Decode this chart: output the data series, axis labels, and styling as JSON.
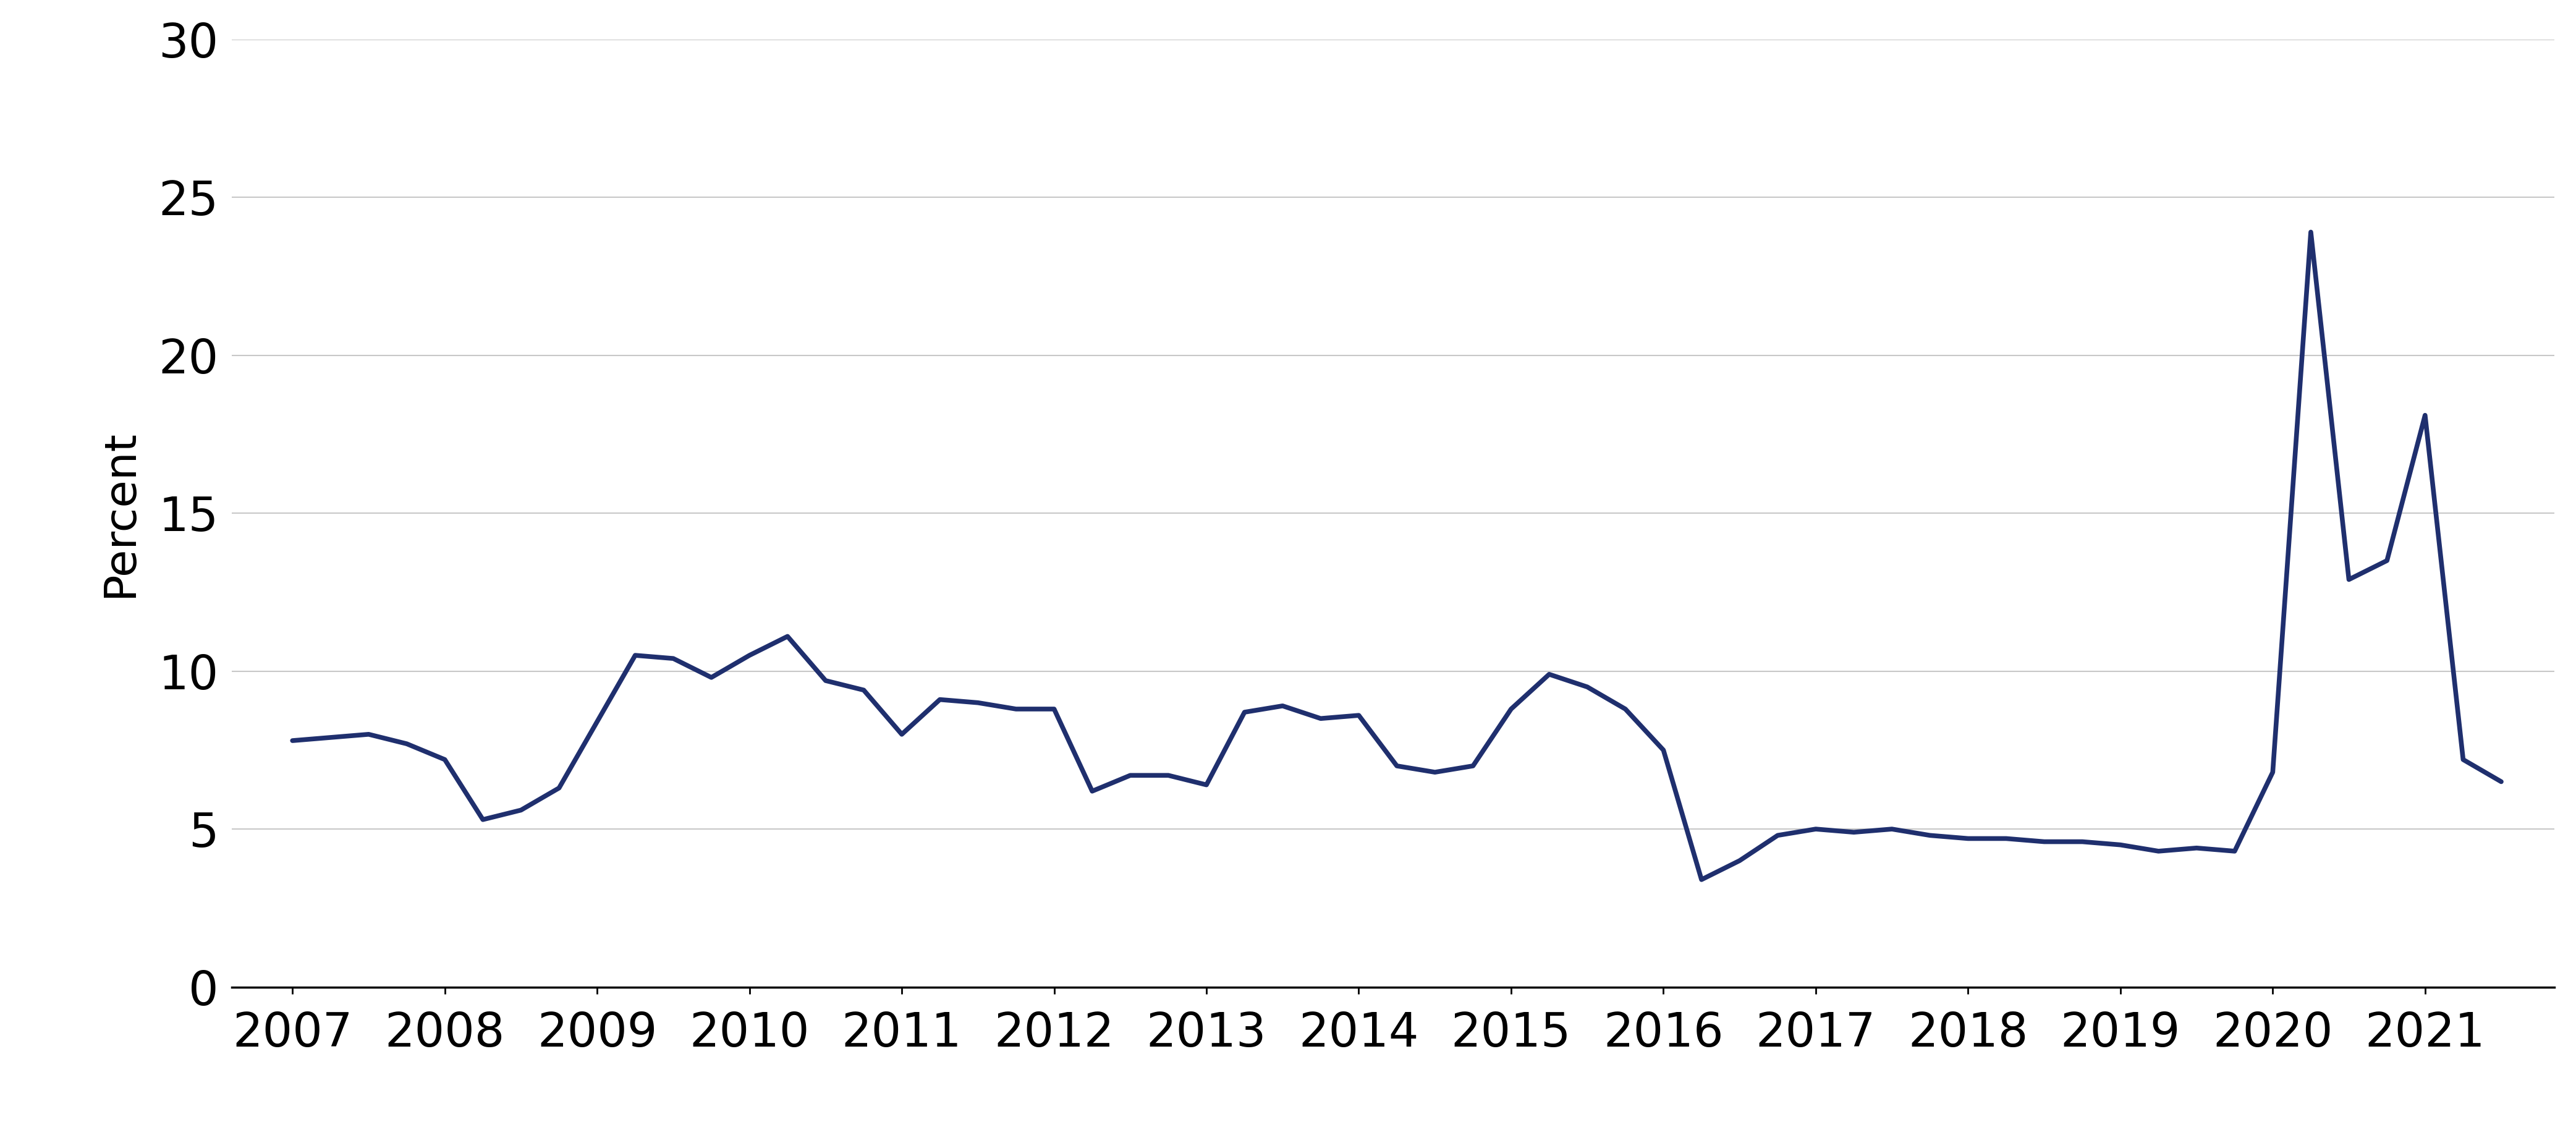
{
  "ylabel": "Percent",
  "line_color": "#1f2f6e",
  "line_width": 5.5,
  "background_color": "#ffffff",
  "grid_color": "#c8c8c8",
  "ylim": [
    0,
    30
  ],
  "yticks": [
    0,
    5,
    10,
    15,
    20,
    25,
    30
  ],
  "x_labels": [
    "2007",
    "2008",
    "2009",
    "2010",
    "2011",
    "2012",
    "2013",
    "2014",
    "2015",
    "2016",
    "2017",
    "2018",
    "2019",
    "2020",
    "2021"
  ],
  "x_values": [
    2007.0,
    2007.25,
    2007.5,
    2007.75,
    2008.0,
    2008.25,
    2008.5,
    2008.75,
    2009.0,
    2009.25,
    2009.5,
    2009.75,
    2010.0,
    2010.25,
    2010.5,
    2010.75,
    2011.0,
    2011.25,
    2011.5,
    2011.75,
    2012.0,
    2012.25,
    2012.5,
    2012.75,
    2013.0,
    2013.25,
    2013.5,
    2013.75,
    2014.0,
    2014.25,
    2014.5,
    2014.75,
    2015.0,
    2015.25,
    2015.5,
    2015.75,
    2016.0,
    2016.25,
    2016.5,
    2016.75,
    2017.0,
    2017.25,
    2017.5,
    2017.75,
    2018.0,
    2018.25,
    2018.5,
    2018.75,
    2019.0,
    2019.25,
    2019.5,
    2019.75,
    2020.0,
    2020.25,
    2020.5,
    2020.75,
    2021.0,
    2021.25,
    2021.5
  ],
  "y_values": [
    7.8,
    7.9,
    8.0,
    7.7,
    7.2,
    5.3,
    5.6,
    6.3,
    8.4,
    10.5,
    10.4,
    9.8,
    10.5,
    11.1,
    9.7,
    9.4,
    8.0,
    9.1,
    9.0,
    8.8,
    8.8,
    6.2,
    6.7,
    6.7,
    6.4,
    8.7,
    8.9,
    8.5,
    8.6,
    7.0,
    6.8,
    7.0,
    8.8,
    9.9,
    9.5,
    8.8,
    7.5,
    3.4,
    4.0,
    4.8,
    5.0,
    4.9,
    5.0,
    4.8,
    4.7,
    4.7,
    4.6,
    4.6,
    4.5,
    4.3,
    4.4,
    4.3,
    6.8,
    23.9,
    12.9,
    13.5,
    18.1,
    7.2,
    6.5
  ],
  "x_tick_positions": [
    2007,
    2008,
    2009,
    2010,
    2011,
    2012,
    2013,
    2014,
    2015,
    2016,
    2017,
    2018,
    2019,
    2020,
    2021
  ],
  "xlim": [
    2006.6,
    2021.85
  ],
  "axis_color": "#000000",
  "tick_label_fontsize": 55,
  "ylabel_fontsize": 52,
  "tick_color": "#000000",
  "spine_linewidth": 2.5,
  "grid_linewidth": 1.5,
  "x_tick_length": 8,
  "x_tick_width": 2.0
}
